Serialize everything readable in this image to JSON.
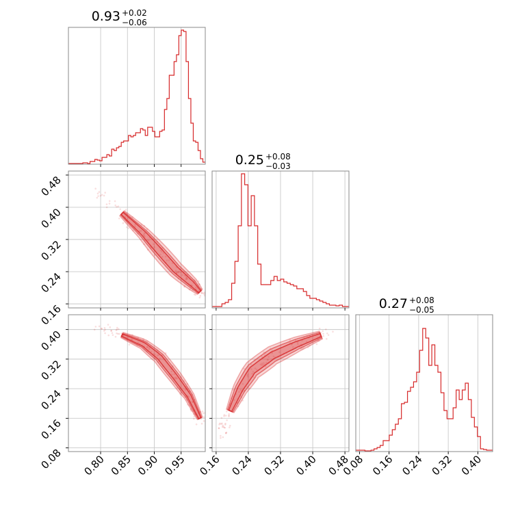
{
  "chart_data": {
    "type": "corner",
    "color": "#d62728",
    "parameters": [
      {
        "range": [
          0.74,
          0.995
        ],
        "ticks": [
          0.8,
          0.85,
          0.9,
          0.95
        ],
        "tick_labels": [
          "0.80",
          "0.85",
          "0.90",
          "0.95"
        ],
        "summary": {
          "median": "0.93",
          "plus": "+0.02",
          "minus": "−0.06"
        },
        "histogram": [
          0.005,
          0.005,
          0.005,
          0.005,
          0.005,
          0.005,
          0.01,
          0.01,
          0.005,
          0.02,
          0.02,
          0.035,
          0.03,
          0.025,
          0.05,
          0.05,
          0.07,
          0.06,
          0.11,
          0.1,
          0.12,
          0.13,
          0.16,
          0.17,
          0.17,
          0.21,
          0.2,
          0.21,
          0.23,
          0.23,
          0.26,
          0.25,
          0.21,
          0.27,
          0.27,
          0.24,
          0.2,
          0.2,
          0.24,
          0.25,
          0.4,
          0.48,
          0.65,
          0.65,
          0.75,
          0.8,
          0.94,
          0.98,
          0.97,
          0.75,
          0.48,
          0.3,
          0.17,
          0.16,
          0.1,
          0.04,
          0.015
        ]
      },
      {
        "range": [
          0.15,
          0.49
        ],
        "ticks": [
          0.16,
          0.24,
          0.32,
          0.4,
          0.48
        ],
        "tick_labels": [
          "0.16",
          "0.24",
          "0.32",
          "0.40",
          "0.48"
        ],
        "summary": {
          "median": "0.25",
          "plus": "+0.08",
          "minus": "−0.03"
        },
        "histogram": [
          0.01,
          0.01,
          0.01,
          0.03,
          0.04,
          0.06,
          0.18,
          0.34,
          0.6,
          0.98,
          0.9,
          0.6,
          0.82,
          0.6,
          0.32,
          0.17,
          0.17,
          0.17,
          0.2,
          0.23,
          0.2,
          0.21,
          0.19,
          0.18,
          0.17,
          0.16,
          0.14,
          0.14,
          0.12,
          0.09,
          0.07,
          0.07,
          0.06,
          0.05,
          0.04,
          0.03,
          0.02,
          0.02,
          0.015,
          0.02,
          0.01,
          0.01
        ]
      },
      {
        "range": [
          0.07,
          0.44
        ],
        "ticks": [
          0.08,
          0.16,
          0.24,
          0.32,
          0.4
        ],
        "tick_labels": [
          "0.08",
          "0.16",
          "0.24",
          "0.32",
          "0.40"
        ],
        "summary": {
          "median": "0.27",
          "plus": "+0.08",
          "minus": "−0.05"
        },
        "histogram": [
          0.01,
          0.01,
          0.01,
          0.005,
          0.005,
          0.01,
          0.02,
          0.03,
          0.045,
          0.08,
          0.08,
          0.12,
          0.16,
          0.2,
          0.24,
          0.35,
          0.36,
          0.44,
          0.47,
          0.51,
          0.58,
          0.74,
          0.9,
          0.83,
          0.63,
          0.78,
          0.63,
          0.58,
          0.43,
          0.3,
          0.24,
          0.24,
          0.32,
          0.45,
          0.38,
          0.45,
          0.5,
          0.38,
          0.25,
          0.18,
          0.11,
          0.02,
          0.015,
          0.01,
          0.01
        ]
      }
    ],
    "pairs": [
      {
        "x_param": 0,
        "y_param": 1,
        "ridge": [
          [
            0.84,
            0.385
          ],
          [
            0.88,
            0.335
          ],
          [
            0.91,
            0.29
          ],
          [
            0.94,
            0.245
          ],
          [
            0.97,
            0.21
          ],
          [
            0.985,
            0.19
          ]
        ],
        "widths": [
          0.008,
          0.013,
          0.02
        ]
      },
      {
        "x_param": 0,
        "y_param": 2,
        "ridge": [
          [
            0.84,
            0.385
          ],
          [
            0.88,
            0.36
          ],
          [
            0.91,
            0.325
          ],
          [
            0.94,
            0.27
          ],
          [
            0.965,
            0.22
          ],
          [
            0.985,
            0.16
          ]
        ],
        "widths": [
          0.007,
          0.012,
          0.018
        ]
      },
      {
        "x_param": 1,
        "y_param": 2,
        "ridge": [
          [
            0.195,
            0.18
          ],
          [
            0.22,
            0.24
          ],
          [
            0.25,
            0.29
          ],
          [
            0.3,
            0.33
          ],
          [
            0.36,
            0.36
          ],
          [
            0.42,
            0.385
          ]
        ],
        "widths": [
          0.01,
          0.018,
          0.026
        ]
      }
    ]
  }
}
